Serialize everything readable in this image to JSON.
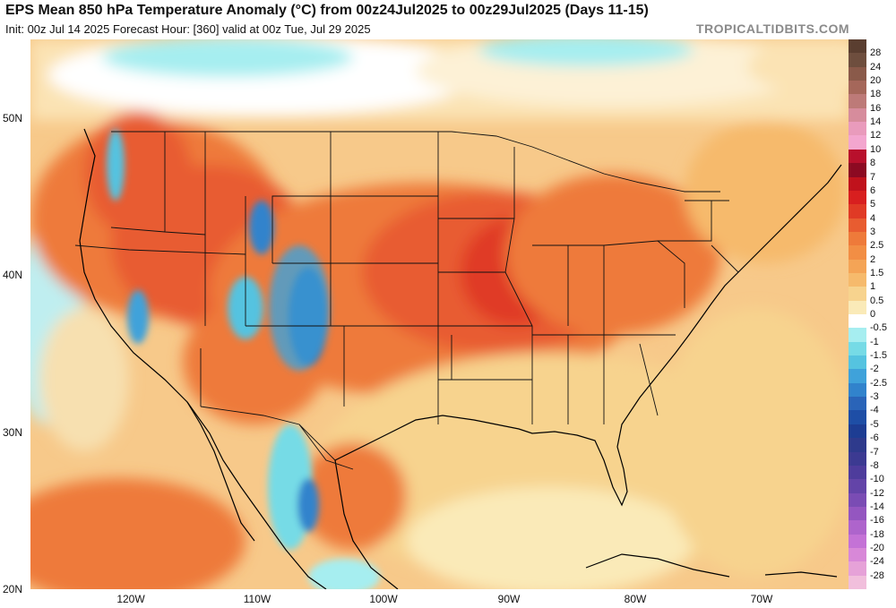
{
  "header": {
    "title": "EPS Mean 850 hPa Temperature Anomaly (°C) from 00z24Jul2025 to 00z29Jul2025 (Days 11-15)",
    "subtitle": "Init: 00z Jul 14 2025   Forecast Hour: [360]   valid at 00z Tue, Jul 29 2025",
    "brand": "TROPICALTIDBITS.COM"
  },
  "axes": {
    "lat_labels": [
      "50N",
      "40N",
      "30N",
      "20N"
    ],
    "lon_labels": [
      "120W",
      "110W",
      "100W",
      "90W",
      "80W",
      "70W"
    ]
  },
  "colorbar": {
    "labels": [
      "28",
      "24",
      "20",
      "18",
      "16",
      "14",
      "12",
      "10",
      "8",
      "7",
      "6",
      "5",
      "4",
      "3",
      "2.5",
      "2",
      "1.5",
      "1",
      "0.5",
      "0",
      "-0.5",
      "-1",
      "-1.5",
      "-2",
      "-2.5",
      "-3",
      "-4",
      "-5",
      "-6",
      "-7",
      "-8",
      "-10",
      "-12",
      "-14",
      "-16",
      "-18",
      "-20",
      "-24",
      "-28"
    ],
    "colors": [
      "#6e4e3e",
      "#8a5a4a",
      "#a5675a",
      "#bd7a78",
      "#d68c9c",
      "#e99bbc",
      "#f3a6cf",
      "#b8102c",
      "#8c0a22",
      "#c0121c",
      "#d81f1f",
      "#e03a25",
      "#e85c30",
      "#ee7a3a",
      "#f28e44",
      "#f4a456",
      "#f6ba6c",
      "#f7d38e",
      "#faeab8",
      "#ffffff",
      "#a6eef0",
      "#76dbe6",
      "#55c3e0",
      "#3fa2da",
      "#3183cc",
      "#2a64b8",
      "#1e4ea6",
      "#1d3d93",
      "#2e3a8c",
      "#3c3a92",
      "#4e3c9c",
      "#6344a8",
      "#7a4cb4",
      "#9456c0",
      "#ae64cc",
      "#c472d6",
      "#d888d8",
      "#e6a2d8",
      "#f1bfdc"
    ]
  },
  "map": {
    "projection": "Lambert-like regional view of North America, 20N–55N, 128W–62W",
    "regions": [
      "Strong warm anomalies (3–5 °C) over Pacific Northwest, northern Rockies, Great Plains and Midwest",
      "Cool anomalies (-0.5 to -4 °C) over Colorado/Utah Rockies, Sierra Nevada and Sierra Madre Occidental",
      "Weak warm anomalies (1–2 °C) over Southeast US, Gulf of Mexico and Atlantic",
      "Near-zero / cool anomalies over Hudson Bay and Pacific coast of California"
    ]
  }
}
